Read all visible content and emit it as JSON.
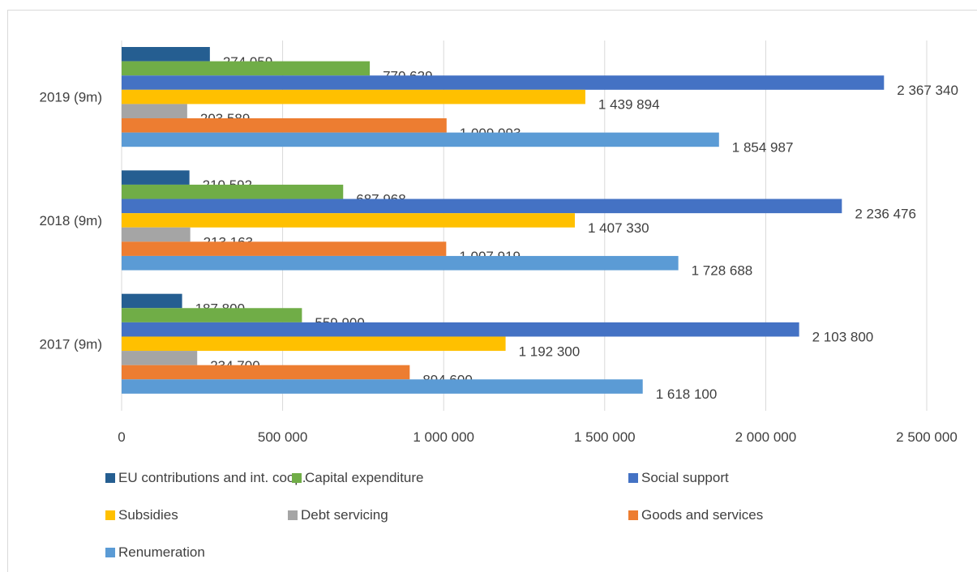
{
  "chart_data": {
    "type": "bar",
    "orientation": "horizontal",
    "categories": [
      "2019 (9m)",
      "2018 (9m)",
      "2017 (9m)"
    ],
    "series": [
      {
        "name": "EU contributions and int. coop.",
        "color": "#255e91",
        "values": [
          274059,
          210592,
          187800
        ],
        "labels": [
          "274 059",
          "210 592",
          "187 800"
        ]
      },
      {
        "name": "Capital expenditure",
        "color": "#70ad47",
        "values": [
          770629,
          687968,
          559900
        ],
        "labels": [
          "770 629",
          "687 968",
          "559 900"
        ]
      },
      {
        "name": "Social support",
        "color": "#4472c4",
        "values": [
          2367340,
          2236476,
          2103800
        ],
        "labels": [
          "2 367 340",
          "2 236 476",
          "2 103 800"
        ]
      },
      {
        "name": "Subsidies",
        "color": "#ffc000",
        "values": [
          1439894,
          1407330,
          1192300
        ],
        "labels": [
          "1 439 894",
          "1 407 330",
          "1 192 300"
        ]
      },
      {
        "name": "Debt servicing",
        "color": "#a5a5a5",
        "values": [
          203589,
          213163,
          234700
        ],
        "labels": [
          "203 589",
          "213 163",
          "234 700"
        ]
      },
      {
        "name": "Goods and services",
        "color": "#ed7d31",
        "values": [
          1009093,
          1007919,
          894600
        ],
        "labels": [
          "1 009 093",
          "1 007 919",
          "894 600"
        ]
      },
      {
        "name": "Renumeration",
        "color": "#5b9bd5",
        "values": [
          1854987,
          1728688,
          1618100
        ],
        "labels": [
          "1 854 987",
          "1 728 688",
          "1 618 100"
        ]
      }
    ],
    "xlim": [
      0,
      2500000
    ],
    "xticks": [
      0,
      500000,
      1000000,
      1500000,
      2000000,
      2500000
    ],
    "xtick_labels": [
      "0",
      "500 000",
      "1 000 000",
      "1 500 000",
      "2 000 000",
      "2 500 000"
    ],
    "grid": true,
    "legend_position": "bottom"
  }
}
